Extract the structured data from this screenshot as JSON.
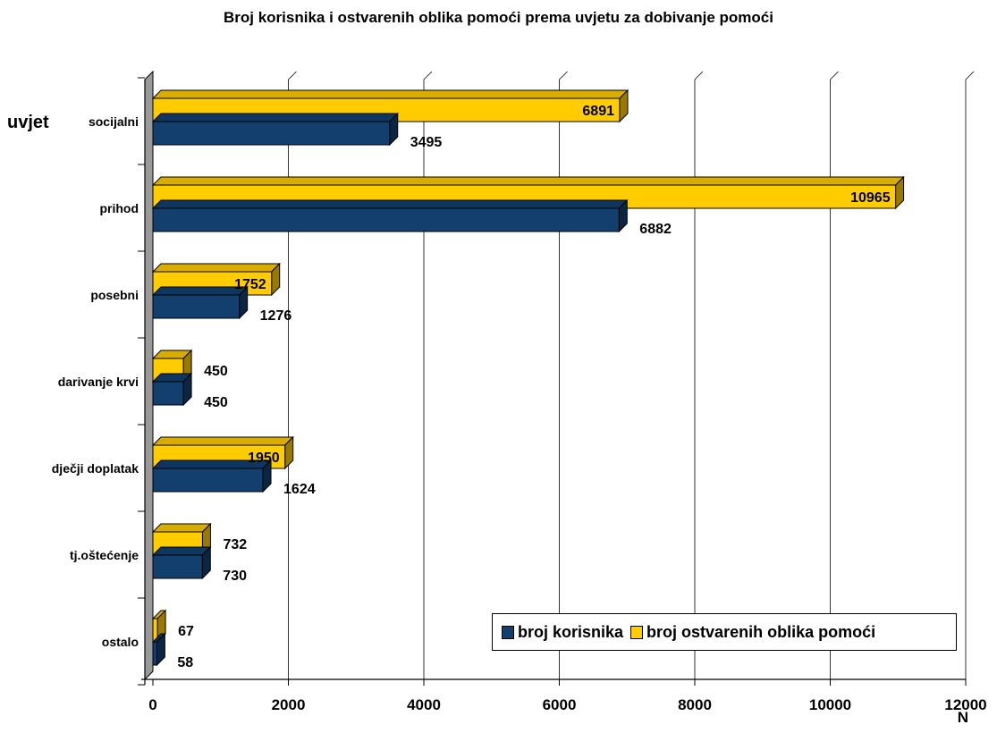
{
  "chart_data": {
    "type": "bar",
    "orientation": "horizontal",
    "title": "Broj korisnika i ostvarenih oblika pomoći prema uvjetu za dobivanje pomoći",
    "ylabel": "uvjet",
    "xlabel": "N",
    "categories": [
      "socijalni",
      "prihod",
      "posebni",
      "darivanje krvi",
      "dječji doplatak",
      "tj.oštećenje",
      "ostalo"
    ],
    "series": [
      {
        "name": "broj korisnika",
        "color": "#123f6e",
        "values": [
          3495,
          6882,
          1276,
          450,
          1624,
          730,
          58
        ],
        "labels": [
          "3495",
          "6882",
          "1276",
          "450",
          "1624",
          "730",
          "58"
        ]
      },
      {
        "name": "broj ostvarenih oblika pomoći",
        "color": "#ffcc00",
        "values": [
          6891,
          10965,
          1752,
          450,
          1950,
          732,
          67
        ],
        "labels": [
          "6891",
          "10965",
          "1752",
          "450",
          "1950",
          "732",
          "67"
        ]
      }
    ],
    "xlim": [
      0,
      12000
    ],
    "xticks": [
      "0",
      "2000",
      "4000",
      "6000",
      "8000",
      "10000",
      "12000"
    ],
    "grid": true,
    "legend_position": "bottom-right"
  }
}
